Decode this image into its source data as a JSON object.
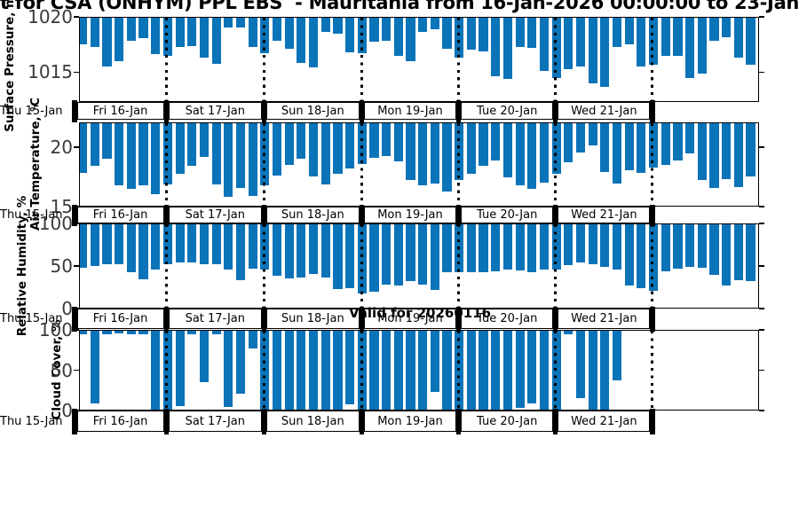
{
  "title": "t for CSA (ONHYM) PPL EBS  - Mauritania from 16-Jan-2026 00:00:00 to 23-Jan",
  "valid_label": "Valid for 20260116",
  "colors": {
    "bar": "#0b73b8",
    "tick_label": "#3a3a3a",
    "axis": "#000000"
  },
  "chart_data": {
    "type": "bar",
    "interval_hours": 3,
    "grid": "vertical-dotted-day-boundaries",
    "x_axis": {
      "first_label": "Thu 15-Jan",
      "day_labels": [
        "Fri 16-Jan",
        "Sat 17-Jan",
        "Sun 18-Jan",
        "Mon 19-Jan",
        "Tue 20-Jan",
        "Wed 21-Jan"
      ]
    },
    "subplots": [
      {
        "name": "surface-pressure",
        "ylabel": "Surface Pressure, mb",
        "ylim": [
          1012.3,
          1020
        ],
        "yticks": [
          {
            "v": 1015,
            "l": "1015"
          },
          {
            "v": 1020,
            "l": "1020"
          }
        ],
        "values": [
          1014.8,
          1015.0,
          1016.8,
          1016.3,
          1014.4,
          1014.2,
          1015.7,
          1015.8,
          1015.0,
          1014.9,
          1016.0,
          1016.6,
          1013.2,
          1013.2,
          1015.0,
          1015.6,
          1014.4,
          1015.2,
          1016.5,
          1016.9,
          1013.6,
          1013.8,
          1015.5,
          1015.6,
          1014.5,
          1014.4,
          1015.8,
          1016.3,
          1013.6,
          1013.4,
          1015.2,
          1016.0,
          1015.3,
          1015.4,
          1017.7,
          1018.0,
          1015.0,
          1015.1,
          1017.2,
          1017.9,
          1017.1,
          1016.8,
          1018.4,
          1018.7,
          1015.0,
          1014.8,
          1016.8,
          1016.7,
          1015.8,
          1015.8,
          1017.9,
          1017.5,
          1014.4,
          1014.1,
          1016.0,
          1016.7
        ]
      },
      {
        "name": "air-temperature",
        "ylabel": "Air Temperature, °C",
        "ylim": [
          15,
          22.1
        ],
        "yticks": [
          {
            "v": 15,
            "l": "15"
          },
          {
            "v": 20,
            "l": "20"
          }
        ],
        "values": [
          19.3,
          18.7,
          18.1,
          20.4,
          20.7,
          20.4,
          21.1,
          20.3,
          19.4,
          18.7,
          17.9,
          20.3,
          21.4,
          20.6,
          21.3,
          20.4,
          19.5,
          18.6,
          18.1,
          19.6,
          20.3,
          19.4,
          18.9,
          18.5,
          18.0,
          17.8,
          18.3,
          19.9,
          20.4,
          20.2,
          20.9,
          19.9,
          19.4,
          18.7,
          18.2,
          19.7,
          20.4,
          20.7,
          20.1,
          19.4,
          18.4,
          17.5,
          16.9,
          19.2,
          20.2,
          19.1,
          19.3,
          18.8,
          18.6,
          18.2,
          17.6,
          19.9,
          20.6,
          19.8,
          20.5,
          19.6
        ]
      },
      {
        "name": "relative-humidity",
        "ylabel": "Relative Humidity, %",
        "ylim": [
          0,
          100
        ],
        "yticks": [
          {
            "v": 0,
            "l": "0"
          },
          {
            "v": 50,
            "l": "50"
          },
          {
            "v": 100,
            "l": "100"
          }
        ],
        "values": [
          52,
          50,
          48,
          48,
          58,
          66,
          54,
          48,
          46,
          46,
          48,
          48,
          55,
          67,
          53,
          55,
          62,
          65,
          64,
          60,
          64,
          78,
          77,
          83,
          81,
          73,
          74,
          68,
          73,
          79,
          58,
          58,
          58,
          58,
          57,
          55,
          56,
          58,
          55,
          54,
          49,
          46,
          48,
          51,
          55,
          74,
          77,
          80,
          57,
          53,
          51,
          52,
          61,
          74,
          67,
          68
        ]
      },
      {
        "name": "cloud-cover",
        "ylabel": "Cloud Cover, %",
        "ylim": [
          0,
          100
        ],
        "yticks": [
          {
            "v": 0,
            "l": "0"
          },
          {
            "v": 50,
            "l": "50"
          },
          {
            "v": 100,
            "l": "100"
          }
        ],
        "values": [
          5,
          92,
          5,
          3,
          5,
          5,
          100,
          100,
          96,
          5,
          66,
          5,
          97,
          80,
          23,
          100,
          100,
          100,
          100,
          100,
          100,
          100,
          94,
          100,
          100,
          100,
          100,
          100,
          100,
          78,
          100,
          100,
          100,
          100,
          100,
          100,
          98,
          93,
          100,
          100,
          4,
          86,
          100,
          100,
          63,
          null,
          null,
          null,
          null,
          null,
          null,
          null,
          null,
          null,
          null,
          null
        ]
      }
    ]
  }
}
